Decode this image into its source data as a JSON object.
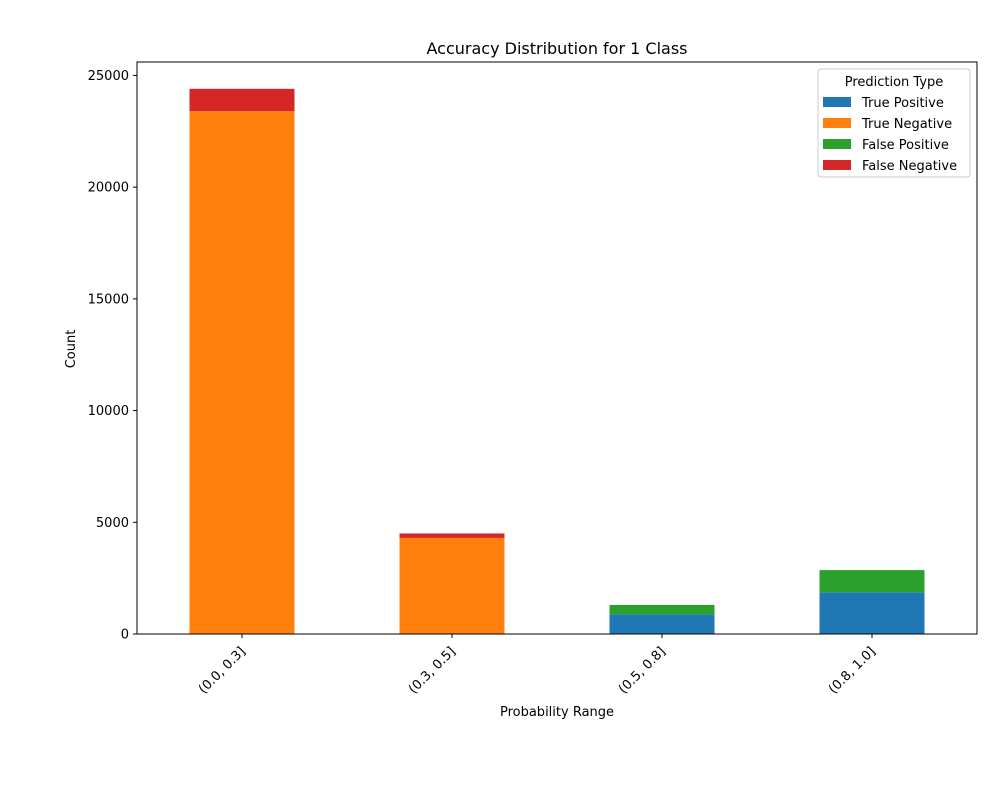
{
  "chart_data": {
    "type": "bar",
    "stacked": true,
    "title": "Accuracy Distribution for 1 Class",
    "xlabel": "Probability Range",
    "ylabel": "Count",
    "ylim": [
      0,
      25600
    ],
    "yticks": [
      0,
      5000,
      10000,
      15000,
      20000,
      25000
    ],
    "categories": [
      "(0.0, 0.3]",
      "(0.3, 0.5]",
      "(0.5, 0.8]",
      "(0.8, 1.0]"
    ],
    "legend": {
      "title": "Prediction Type",
      "placement": "top-right"
    },
    "series": [
      {
        "name": "True Positive",
        "color": "#1f77b4",
        "values": [
          0,
          0,
          880,
          1870
        ]
      },
      {
        "name": "True Negative",
        "color": "#ff7f0e",
        "values": [
          23400,
          4300,
          0,
          0
        ]
      },
      {
        "name": "False Positive",
        "color": "#2ca02c",
        "values": [
          0,
          0,
          420,
          990
        ]
      },
      {
        "name": "False Negative",
        "color": "#d62728",
        "values": [
          1000,
          200,
          0,
          0
        ]
      }
    ],
    "grid": false
  }
}
